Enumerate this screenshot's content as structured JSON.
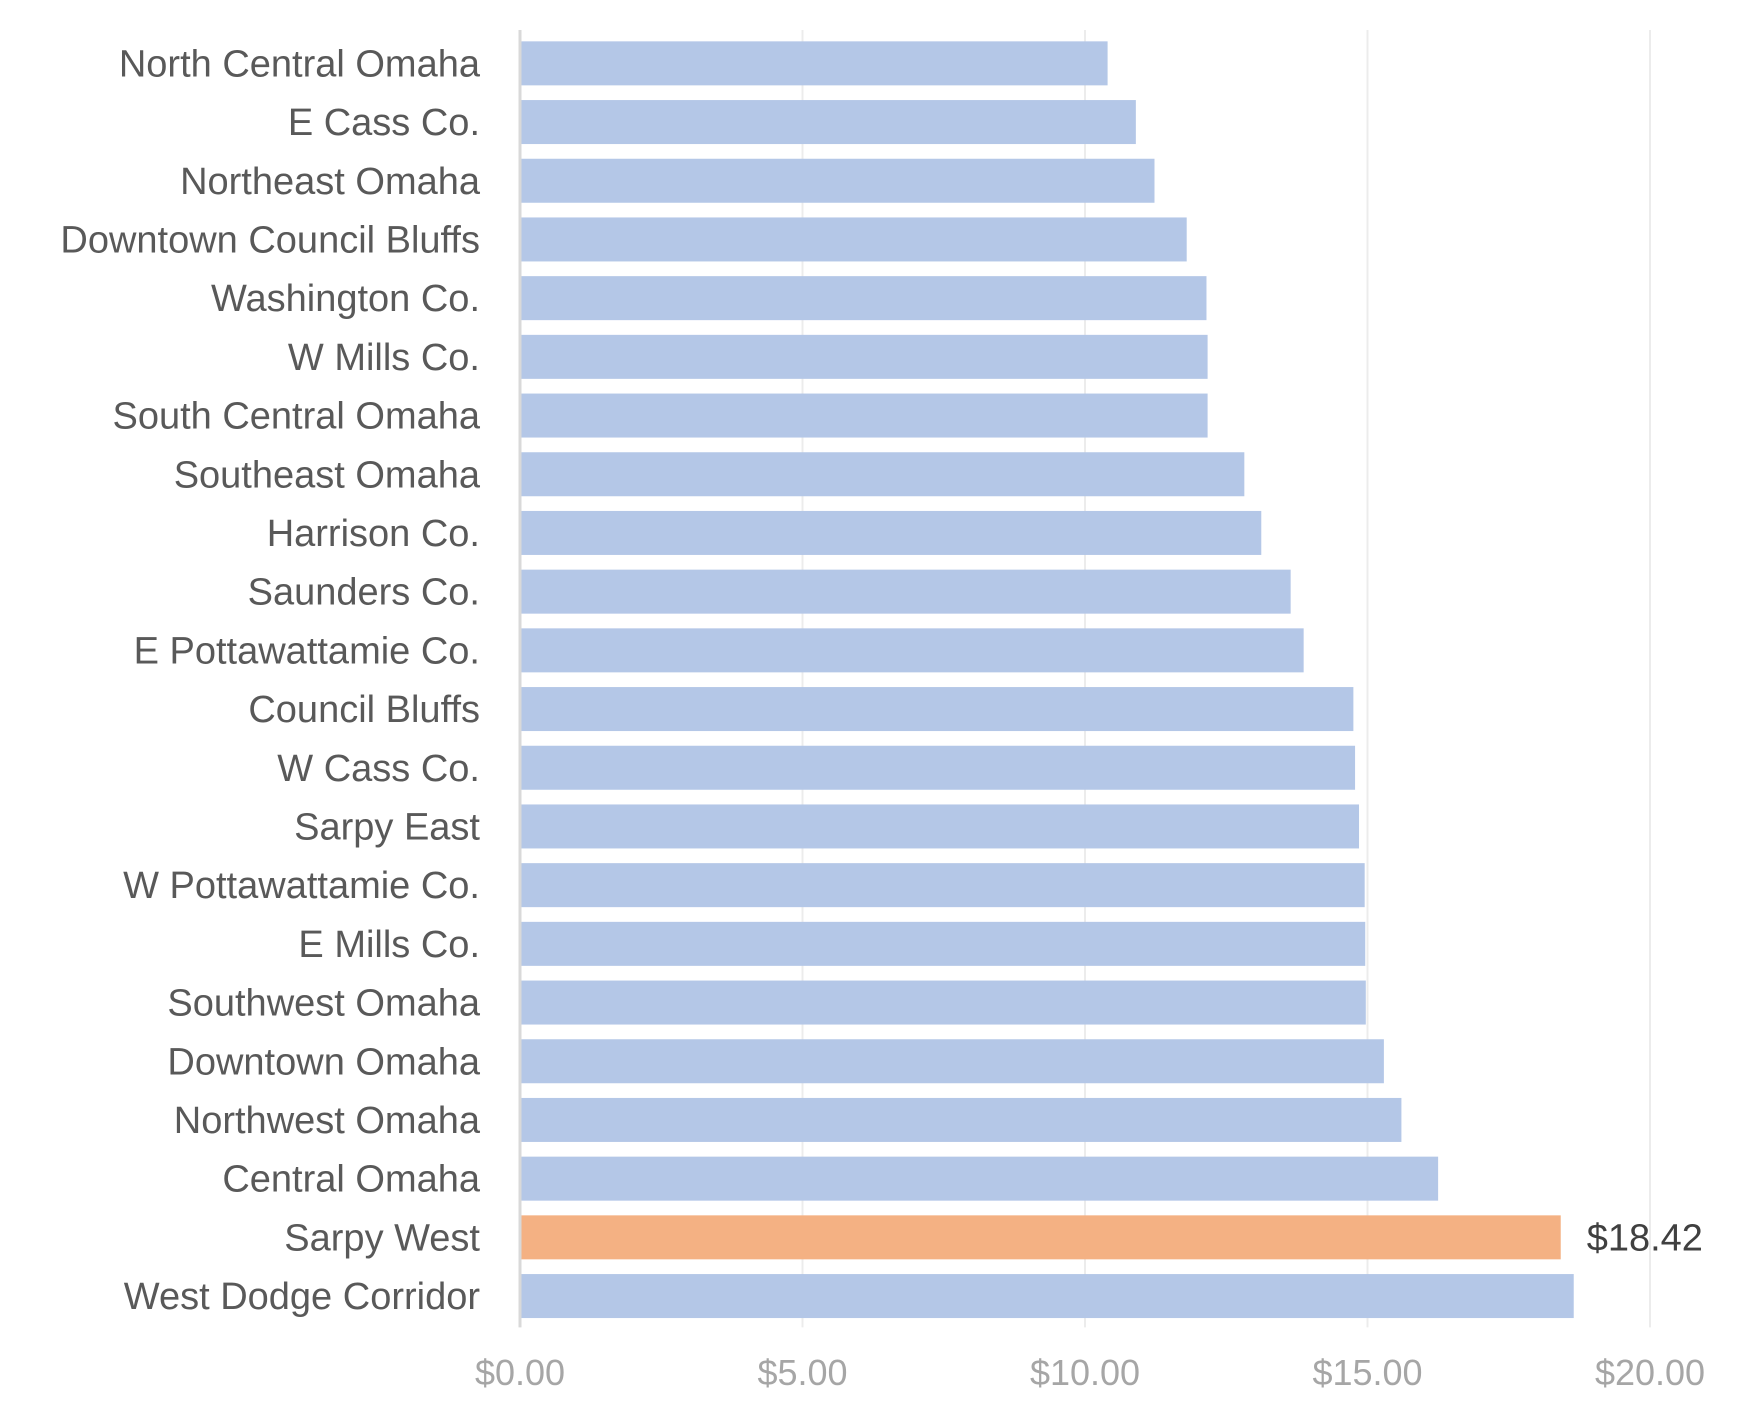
{
  "chart_data": {
    "type": "bar",
    "orientation": "horizontal",
    "title": "",
    "xlabel": "",
    "ylabel": "",
    "xlim": [
      0,
      20
    ],
    "grid": true,
    "x_tick_labels": [
      "$0.00",
      "$5.00",
      "$10.00",
      "$15.00",
      "$20.00"
    ],
    "x_tick_values": [
      0,
      5,
      10,
      15,
      20
    ],
    "categories": [
      "North Central Omaha",
      "E Cass Co.",
      "Northeast Omaha",
      "Downtown Council Bluffs",
      "Washington Co.",
      "W Mills Co.",
      "South Central Omaha",
      "Southeast Omaha",
      "Harrison Co.",
      "Saunders Co.",
      "E Pottawattamie Co.",
      "Council Bluffs",
      "W Cass Co.",
      "Sarpy East",
      "W Pottawattamie Co.",
      "E Mills Co.",
      "Southwest Omaha",
      "Downtown Omaha",
      "Northwest Omaha",
      "Central Omaha",
      "Sarpy West",
      "West Dodge Corridor"
    ],
    "values": [
      10.4,
      10.9,
      11.23,
      11.8,
      12.15,
      12.17,
      12.17,
      12.82,
      13.12,
      13.64,
      13.87,
      14.75,
      14.78,
      14.85,
      14.95,
      14.96,
      14.97,
      15.29,
      15.6,
      16.25,
      18.42,
      18.65
    ],
    "highlight_index": 20,
    "data_labels": [
      {
        "index": 20,
        "text": "$18.42"
      }
    ],
    "colors": {
      "bar": "#b4c7e7",
      "highlight": "#f4b183",
      "gridline": "#ececec",
      "axis": "#d9d9d9",
      "category_text": "#595959",
      "tick_text": "#a6a6a6",
      "data_label_text": "#404040"
    }
  }
}
